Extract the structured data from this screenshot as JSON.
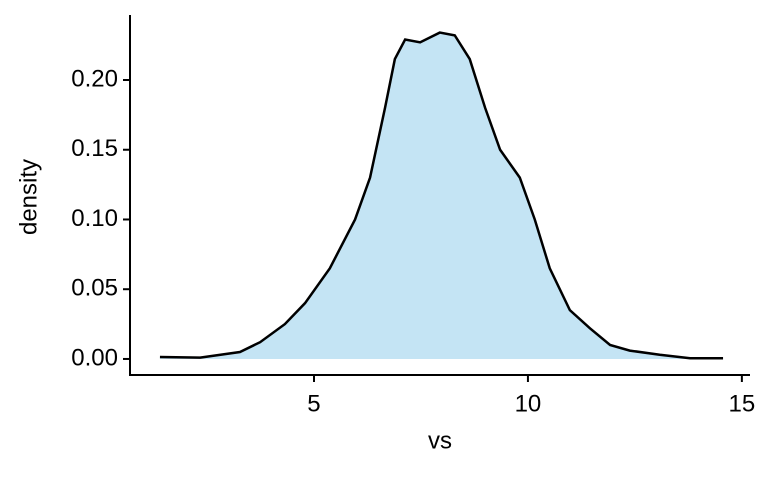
{
  "chart_data": {
    "type": "area",
    "x_label": "vs",
    "y_label": "density",
    "x": [
      1.4,
      2.34,
      3.27,
      3.74,
      4.32,
      4.79,
      5.37,
      5.96,
      6.31,
      6.66,
      6.89,
      7.13,
      7.48,
      7.94,
      8.29,
      8.64,
      9.0,
      9.35,
      9.81,
      10.16,
      10.51,
      10.98,
      11.45,
      11.92,
      12.38,
      13.08,
      13.79,
      14.56
    ],
    "values": [
      0.0014,
      0.001,
      0.005,
      0.012,
      0.025,
      0.04,
      0.065,
      0.1,
      0.13,
      0.18,
      0.215,
      0.229,
      0.227,
      0.234,
      0.232,
      0.215,
      0.18,
      0.15,
      0.13,
      0.1,
      0.065,
      0.035,
      0.022,
      0.01,
      0.006,
      0.003,
      0.0005,
      0.0005
    ],
    "color": "#c4e4f4",
    "line_color": "#000000",
    "xlim": [
      0.7,
      15.19
    ],
    "xticks": [
      5,
      10,
      15
    ],
    "ylim": [
      -0.0115,
      0.2466
    ],
    "yticks": [
      {
        "value": 0,
        "label": "0.00"
      },
      {
        "value": 0.05,
        "label": "0.05"
      },
      {
        "value": 0.1,
        "label": "0.10"
      },
      {
        "value": 0.15,
        "label": "0.15"
      },
      {
        "value": 0.2,
        "label": "0.20"
      }
    ],
    "grid": false
  }
}
